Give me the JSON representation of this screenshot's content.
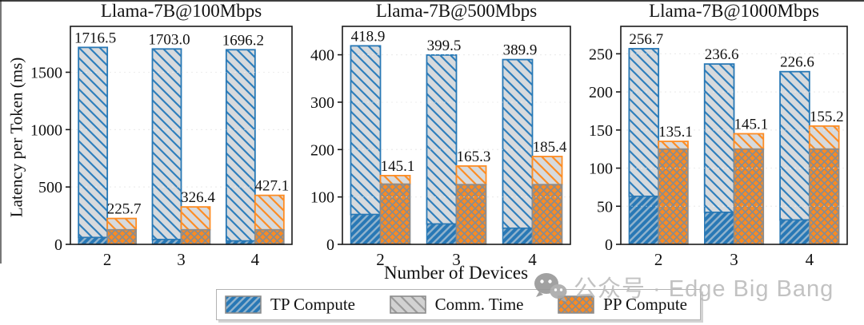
{
  "ylabel": "Latency per Token (ms)",
  "xlabel": "Number of Devices",
  "watermark": {
    "icon": "wechat-icon",
    "text": "公众号 · Edge Big Bang"
  },
  "legend": {
    "position": "bottom-center",
    "items": [
      {
        "label": "TP Compute",
        "pattern": "blue-diagonal-hatch"
      },
      {
        "label": "Comm. Time",
        "pattern": "gray-diagonal-hatch"
      },
      {
        "label": "PP Compute",
        "pattern": "orange-crosshatch"
      }
    ]
  },
  "colors": {
    "tp_blue": "#2878b5",
    "tp_hatch": "#8fb2cd",
    "comm_gray_fill": "#d7dadd",
    "comm_hatch_blue": "#2f7fbc",
    "pp_orange": "#fd8a20",
    "pp_edge_gray": "#8c8c8c",
    "comm_hatch_orange": "#fd8d25",
    "grid": "#dcdcdc",
    "spine": "#1a1a1a"
  },
  "chart_data": [
    {
      "type": "bar",
      "title": "Llama-7B@100Mbps",
      "categories": [
        "2",
        "3",
        "4"
      ],
      "yticks": [
        0,
        500,
        1000,
        1500
      ],
      "ylim": [
        0,
        1900
      ],
      "grid": true,
      "series": [
        {
          "name": "TP bar (TP Compute + Comm. Time)",
          "totals": [
            1716.5,
            1703.0,
            1696.2
          ],
          "labels": [
            "1716.5",
            "1703.0",
            "1696.2"
          ],
          "compute_portion_est": [
            60,
            42,
            30
          ]
        },
        {
          "name": "PP bar (PP Compute + Comm. Time)",
          "totals": [
            225.7,
            326.4,
            427.1
          ],
          "labels": [
            "225.7",
            "326.4",
            "427.1"
          ],
          "compute_portion_est": [
            127,
            127,
            127
          ]
        }
      ]
    },
    {
      "type": "bar",
      "title": "Llama-7B@500Mbps",
      "categories": [
        "2",
        "3",
        "4"
      ],
      "yticks": [
        0,
        100,
        200,
        300,
        400
      ],
      "ylim": [
        0,
        460
      ],
      "grid": true,
      "series": [
        {
          "name": "TP bar (TP Compute + Comm. Time)",
          "totals": [
            418.9,
            399.5,
            389.9
          ],
          "labels": [
            "418.9",
            "399.5",
            "389.9"
          ],
          "compute_portion_est": [
            63,
            43,
            34
          ]
        },
        {
          "name": "PP bar (PP Compute + Comm. Time)",
          "totals": [
            145.1,
            165.3,
            185.4
          ],
          "labels": [
            "145.1",
            "165.3",
            "185.4"
          ],
          "compute_portion_est": [
            127,
            126,
            126
          ]
        }
      ]
    },
    {
      "type": "bar",
      "title": "Llama-7B@1000Mbps",
      "categories": [
        "2",
        "3",
        "4"
      ],
      "yticks": [
        0,
        50,
        100,
        150,
        200,
        250
      ],
      "ylim": [
        0,
        286
      ],
      "grid": true,
      "series": [
        {
          "name": "TP bar (TP Compute + Comm. Time)",
          "totals": [
            256.7,
            236.6,
            226.6
          ],
          "labels": [
            "256.7",
            "236.6",
            "226.6"
          ],
          "compute_portion_est": [
            63,
            42,
            32
          ]
        },
        {
          "name": "PP bar (PP Compute + Comm. Time)",
          "totals": [
            135.1,
            145.1,
            155.2
          ],
          "labels": [
            "135.1",
            "145.1",
            "155.2"
          ],
          "compute_portion_est": [
            125,
            125,
            125
          ]
        }
      ]
    }
  ]
}
